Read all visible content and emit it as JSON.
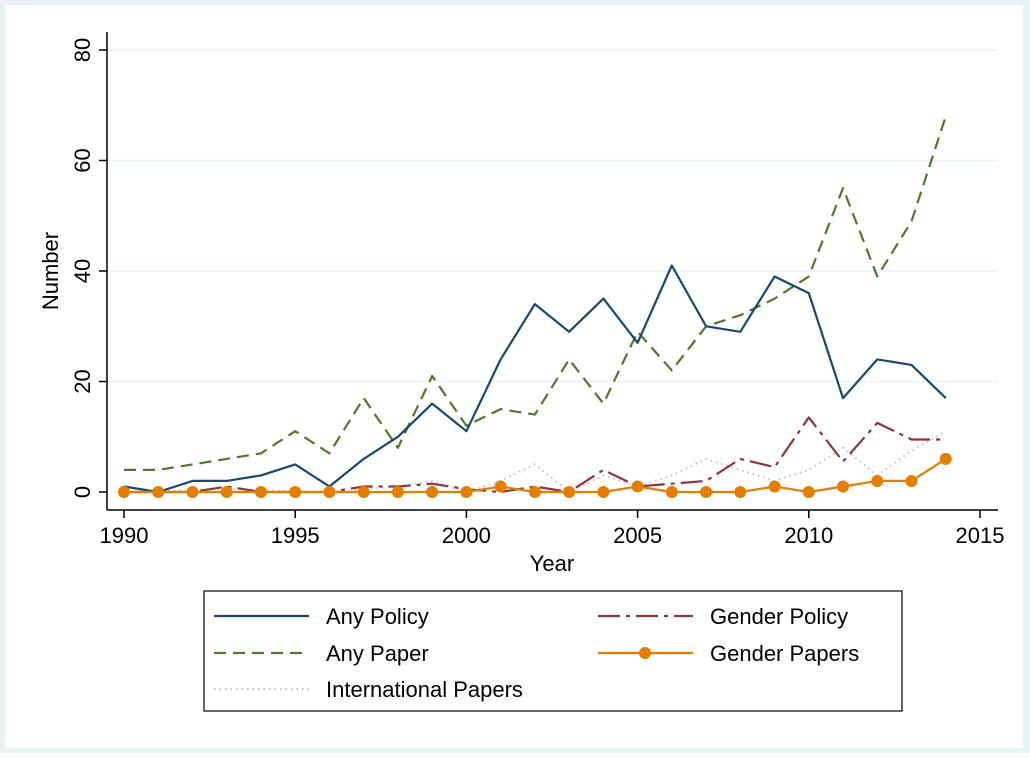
{
  "chart_data": {
    "type": "line",
    "xlabel": "Year",
    "ylabel": "Number",
    "xlim": [
      1990,
      2015
    ],
    "ylim": [
      0,
      80
    ],
    "xticks": [
      1990,
      1995,
      2000,
      2005,
      2010,
      2015
    ],
    "yticks": [
      0,
      20,
      40,
      60,
      80
    ],
    "grid": "horizontal",
    "legend_position": "bottom",
    "x": [
      1990,
      1991,
      1992,
      1993,
      1994,
      1995,
      1996,
      1997,
      1998,
      1999,
      2000,
      2001,
      2002,
      2003,
      2004,
      2005,
      2006,
      2007,
      2008,
      2009,
      2010,
      2011,
      2012,
      2013,
      2014
    ],
    "series": [
      {
        "name": "Any Policy",
        "style": "solid",
        "color": "#1a476f",
        "marker": "none",
        "values": [
          1,
          0,
          2,
          2,
          3,
          5,
          1,
          6,
          10,
          16,
          11,
          24,
          34,
          29,
          35,
          27,
          41,
          30,
          29,
          39,
          36,
          17,
          24,
          23,
          17
        ]
      },
      {
        "name": "Gender Policy",
        "style": "longdash-dot",
        "color": "#90353b",
        "marker": "none",
        "values": [
          0,
          0,
          0,
          1,
          0,
          0,
          0,
          1,
          1,
          1.5,
          0.5,
          0,
          1,
          0,
          4,
          1,
          1.5,
          2,
          6,
          4.5,
          13.5,
          5.5,
          12.5,
          9.5,
          9.5
        ]
      },
      {
        "name": "Any Paper",
        "style": "dash",
        "color": "#55752f",
        "marker": "none",
        "values": [
          4,
          4,
          5,
          6,
          7,
          11,
          7,
          17,
          8,
          21,
          12,
          15,
          14,
          24,
          16,
          29,
          22,
          30,
          32,
          35,
          39,
          55,
          39,
          49,
          68
        ]
      },
      {
        "name": "Gender Papers",
        "style": "solid",
        "color": "#e37e00",
        "marker": "circle",
        "values": [
          0,
          0,
          0,
          0,
          0,
          0,
          0,
          0,
          0,
          0,
          0,
          1,
          0,
          0,
          0,
          1,
          0,
          0,
          0,
          1,
          0,
          1,
          2,
          2,
          6
        ]
      },
      {
        "name": "International Papers",
        "style": "dot",
        "color": "#c0c0c0",
        "marker": "none",
        "values": [
          0,
          0,
          0.5,
          0.5,
          0.5,
          0,
          0,
          0.5,
          1,
          2,
          0,
          2,
          5,
          0,
          3,
          1,
          3,
          6,
          4,
          2,
          4,
          8,
          3,
          7.5,
          11
        ]
      }
    ]
  }
}
